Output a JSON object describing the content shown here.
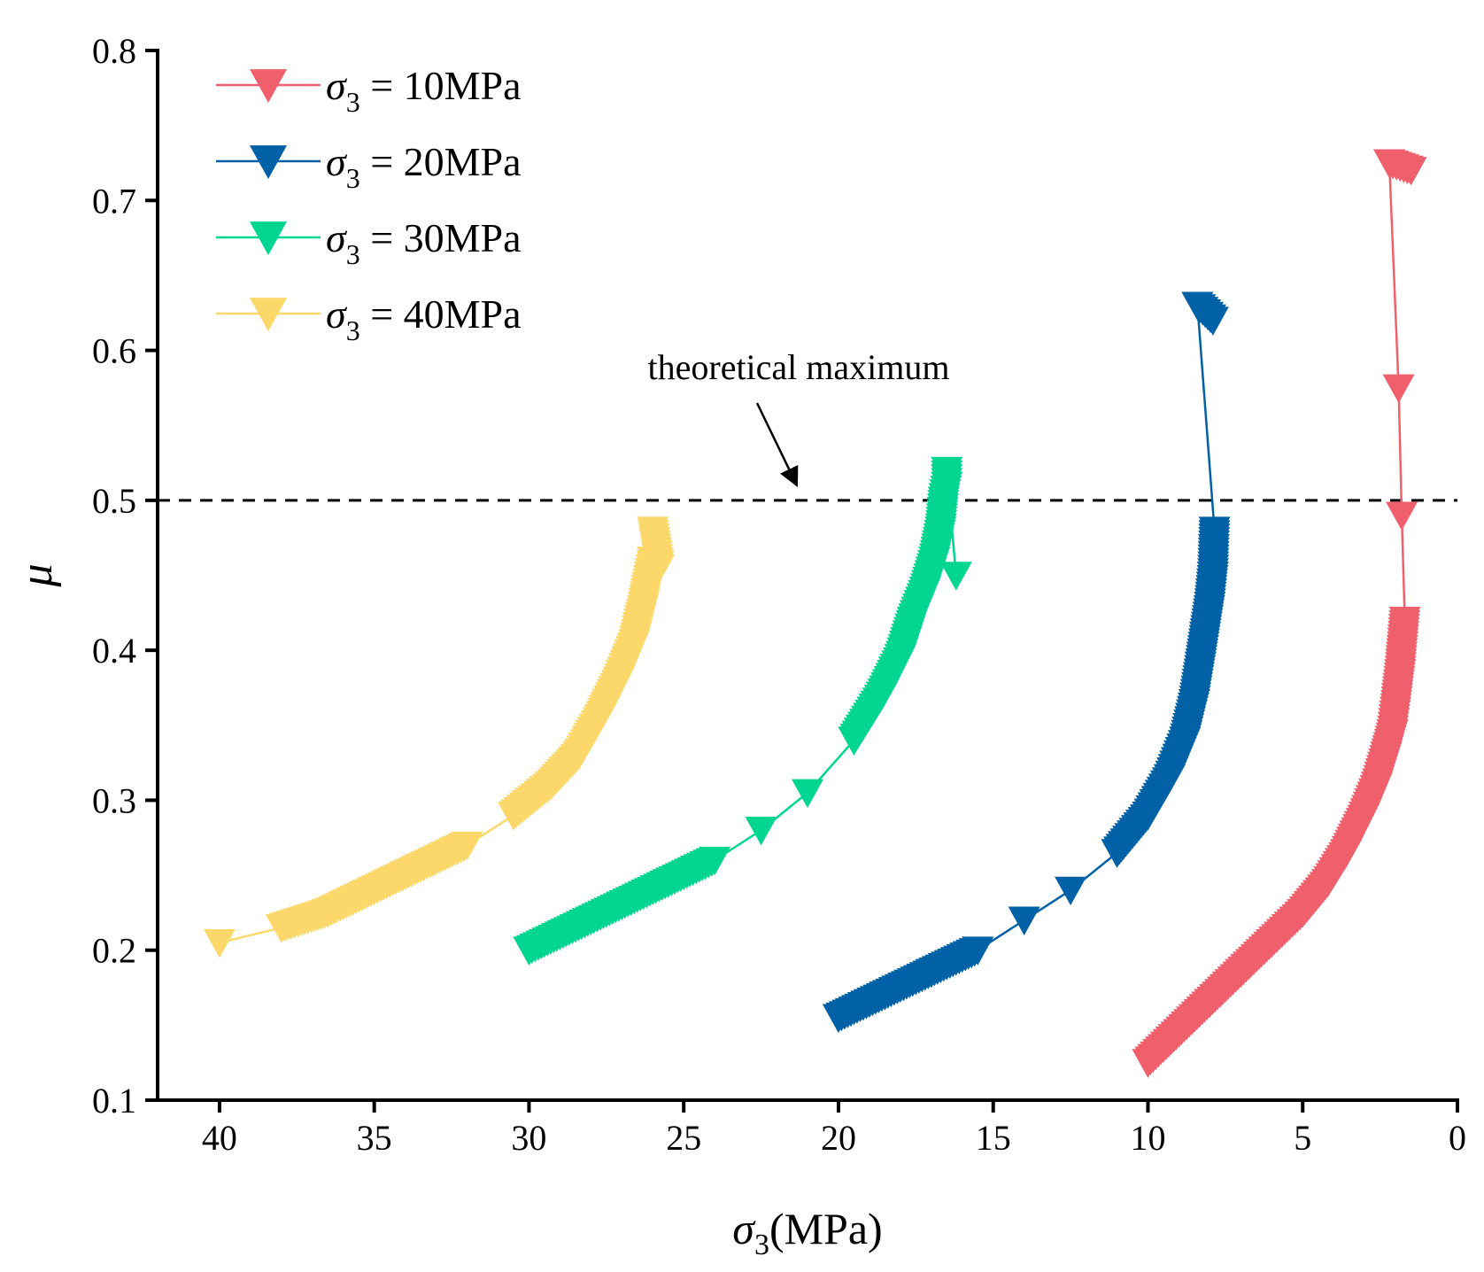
{
  "chart_data": {
    "type": "scatter",
    "title": "",
    "xlabel": {
      "main": "σ",
      "sub": "3",
      "rest": "(MPa)"
    },
    "ylabel": "μ",
    "xlim": [
      42,
      0
    ],
    "ylim": [
      0.1,
      0.8
    ],
    "x_reversed": true,
    "xticks": [
      40,
      35,
      30,
      25,
      20,
      15,
      10,
      5,
      0
    ],
    "xtick_labels": [
      "40",
      "35",
      "30",
      "25",
      "20",
      "15",
      "10",
      "5",
      "0"
    ],
    "yticks": [
      0.1,
      0.2,
      0.3,
      0.4,
      0.5,
      0.6,
      0.7,
      0.8
    ],
    "ytick_labels": [
      "0.1",
      "0.2",
      "0.3",
      "0.4",
      "0.5",
      "0.6",
      "0.7",
      "0.8"
    ],
    "grid": false,
    "legend_position": "top-left",
    "reference_line": {
      "y": 0.5,
      "style": "dashed",
      "annotation": "theoretical maximum"
    },
    "series": [
      {
        "name": "σ3 = 10MPa",
        "legend": {
          "prefix": "σ",
          "sub": "3",
          "suffix": " = 10MPa"
        },
        "color": "#F0606C",
        "marker": "triangle-down",
        "x": [
          10.0,
          9.0,
          8.0,
          7.0,
          6.0,
          5.0,
          4.2,
          3.6,
          3.0,
          2.6,
          2.3,
          2.1,
          2.0,
          1.85,
          1.7,
          1.8,
          1.9,
          2.2,
          1.5
        ],
        "y": [
          0.125,
          0.145,
          0.165,
          0.185,
          0.205,
          0.225,
          0.245,
          0.265,
          0.29,
          0.31,
          0.33,
          0.345,
          0.36,
          0.385,
          0.42,
          0.49,
          0.575,
          0.725,
          0.72
        ]
      },
      {
        "name": "σ3 = 20MPa",
        "legend": {
          "prefix": "σ",
          "sub": "3",
          "suffix": " = 20MPa"
        },
        "color": "#0061A7",
        "marker": "triangle-down",
        "x": [
          20.0,
          18.5,
          17.0,
          15.5,
          14.0,
          12.5,
          11.0,
          10.0,
          9.3,
          8.8,
          8.5,
          8.3,
          8.15,
          8.0,
          7.9,
          7.85,
          8.4,
          7.9
        ],
        "y": [
          0.155,
          0.17,
          0.185,
          0.2,
          0.22,
          0.24,
          0.265,
          0.29,
          0.315,
          0.34,
          0.365,
          0.39,
          0.41,
          0.43,
          0.45,
          0.48,
          0.63,
          0.62
        ]
      },
      {
        "name": "σ3 = 30MPa",
        "legend": {
          "prefix": "σ",
          "sub": "3",
          "suffix": " = 30MPa"
        },
        "color": "#00D68F",
        "marker": "triangle-down",
        "x": [
          30.0,
          28.5,
          27.0,
          25.5,
          24.0,
          22.5,
          21.0,
          19.5,
          18.6,
          18.0,
          17.6,
          17.2,
          16.9,
          16.7,
          16.6,
          16.5,
          16.5,
          16.2
        ],
        "y": [
          0.2,
          0.215,
          0.23,
          0.245,
          0.26,
          0.28,
          0.305,
          0.34,
          0.37,
          0.395,
          0.42,
          0.44,
          0.46,
          0.48,
          0.5,
          0.51,
          0.52,
          0.45
        ]
      },
      {
        "name": "σ3 = 40MPa",
        "legend": {
          "prefix": "σ",
          "sub": "3",
          "suffix": " = 40MPa"
        },
        "color": "#FCD86A",
        "marker": "triangle-down",
        "x": [
          40.0,
          38.0,
          36.5,
          35.0,
          33.5,
          32.0,
          30.5,
          29.3,
          28.4,
          27.7,
          27.1,
          26.6,
          26.3,
          26.1,
          26.0,
          25.8,
          26.0
        ],
        "y": [
          0.205,
          0.215,
          0.225,
          0.24,
          0.255,
          0.27,
          0.29,
          0.31,
          0.33,
          0.355,
          0.38,
          0.405,
          0.43,
          0.45,
          0.46,
          0.455,
          0.48
        ]
      }
    ]
  }
}
